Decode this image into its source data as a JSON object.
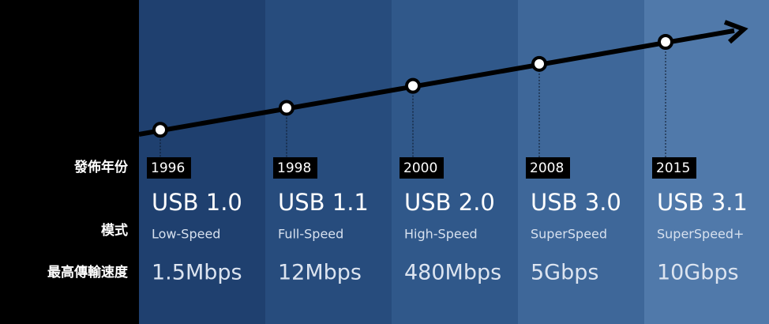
{
  "row_labels": [
    "發佈年份",
    "模式",
    "最高傳輸速度"
  ],
  "nodes": [
    {
      "year": "1996",
      "name": "USB 1.0",
      "mode": "Low-Speed",
      "speed": "1.5Mbps"
    },
    {
      "year": "1998",
      "name": "USB 1.1",
      "mode": "Full-Speed",
      "speed": "12Mbps"
    },
    {
      "year": "2000",
      "name": "USB 2.0",
      "mode": "High-Speed",
      "speed": "480Mbps"
    },
    {
      "year": "2008",
      "name": "USB 3.0",
      "mode": "SuperSpeed",
      "speed": "5Gbps"
    },
    {
      "year": "2015",
      "name": "USB 3.1",
      "mode": "SuperSpeed+",
      "speed": "10Gbps"
    }
  ]
}
